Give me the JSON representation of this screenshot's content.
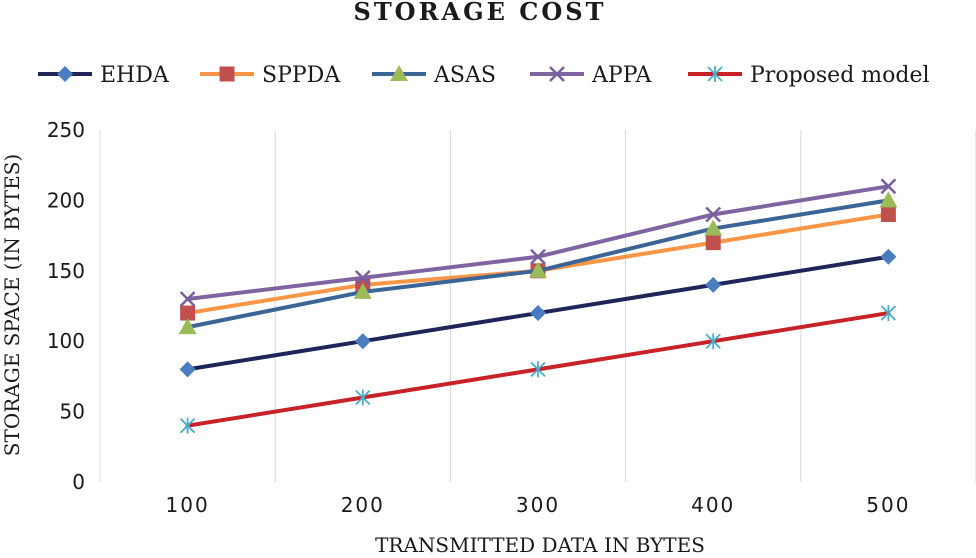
{
  "chart_data": {
    "type": "line",
    "title": "STORAGE COST",
    "xlabel": "TRANSMITTED DATA IN BYTES",
    "ylabel": "STORAGE SPACE (IN BYTES)",
    "categories": [
      "100",
      "200",
      "300",
      "400",
      "500"
    ],
    "ylim": [
      0,
      250
    ],
    "yticks": [
      0,
      50,
      100,
      150,
      200,
      250
    ],
    "grid": "vertical",
    "legend_position": "top",
    "series": [
      {
        "name": "EHDA",
        "values": [
          80,
          100,
          120,
          140,
          160
        ],
        "color": "#1f2559",
        "marker": "diamond",
        "marker_color": "#4a7cc0"
      },
      {
        "name": "SPPDA",
        "values": [
          120,
          140,
          150,
          170,
          190
        ],
        "color": "#f79646",
        "marker": "square",
        "marker_color": "#c0504d"
      },
      {
        "name": "ASAS",
        "values": [
          110,
          135,
          150,
          180,
          200
        ],
        "color": "#3a6596",
        "marker": "triangle",
        "marker_color": "#9bbb59"
      },
      {
        "name": "APPA",
        "values": [
          130,
          145,
          160,
          190,
          210
        ],
        "color": "#8064a2",
        "marker": "x",
        "marker_color": "#7a5f9e"
      },
      {
        "name": "Proposed model",
        "values": [
          40,
          60,
          80,
          100,
          120
        ],
        "color": "#c82127",
        "marker": "star",
        "marker_color": "#4bacc6"
      }
    ]
  }
}
